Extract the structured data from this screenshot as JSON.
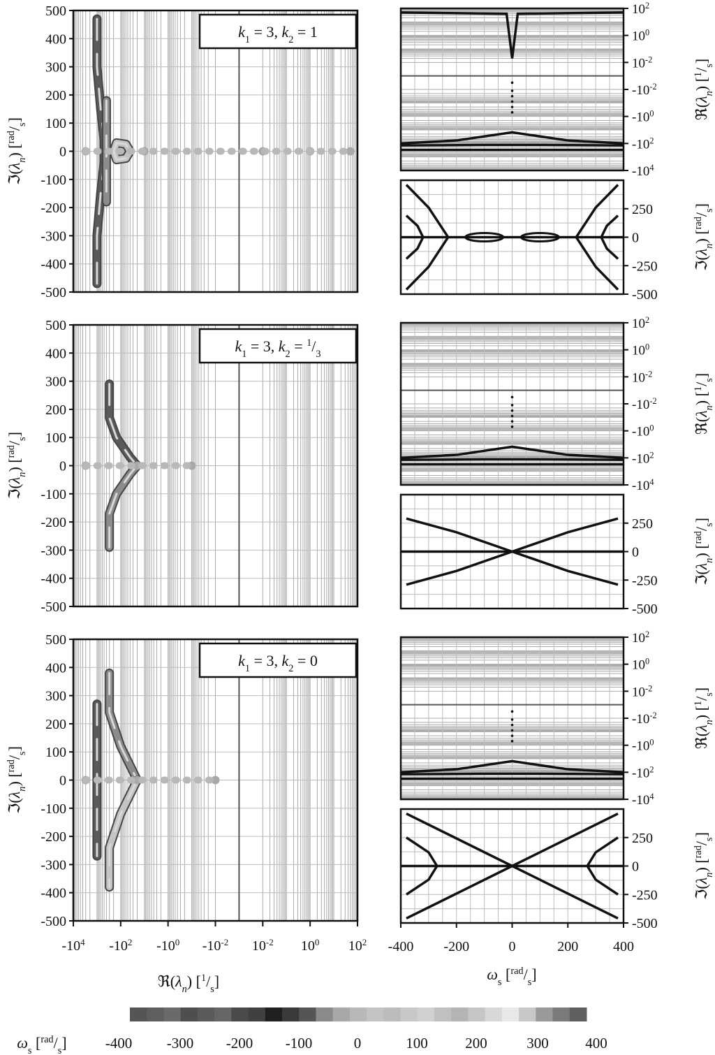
{
  "figure": {
    "left_ylabel": "ℑ(λ_n)  [rad/s]",
    "left_xlabel": "ℜ(λ_n)  [1/s]",
    "right_re_label": "ℜ(λ_n)  [1/s]",
    "right_im_label": "ℑ(λ_n)  [rad/s]",
    "right_xlabel": "ωs  [rad/s]",
    "colorbar_label": "ωs  [rad/s]"
  },
  "colorbar": {
    "ticks": [
      "-400",
      "-300",
      "-200",
      "-100",
      "0",
      "100",
      "200",
      "300",
      "400"
    ],
    "colors": [
      "#555555",
      "#5e5e5e",
      "#6a6a6a",
      "#4e4e4e",
      "#5a5a5a",
      "#666666",
      "#4a4a4a",
      "#404040",
      "#202020",
      "#3a3a3a",
      "#555555",
      "#8a8a8a",
      "#a8a8a8",
      "#b8b8b8",
      "#c4c4c4",
      "#bcbcbc",
      "#c8c8c8",
      "#d0d0d0",
      "#c0c0c0",
      "#b4b4b4",
      "#c6c6c6",
      "#d8d8d8",
      "#e8e8e8",
      "#c8c8c8",
      "#9a9a9a",
      "#7a7a7a",
      "#5e5e5e"
    ]
  },
  "chart_data": [
    {
      "type": "scatter",
      "panel": "root-locus",
      "legend": "k1 = 3, k2 = 1",
      "xlabel": "ℜ(λ_n)  [1/s]",
      "ylabel": "ℑ(λ_n)  [rad/s]",
      "x_scale": "symlog",
      "x_ticks": [
        "-10^4",
        "-10^2",
        "-10^0",
        "-10^-2",
        "10^-2",
        "10^0",
        "10^2"
      ],
      "ylim": [
        -500,
        500
      ],
      "y_ticks": [
        "500",
        "400",
        "300",
        "200",
        "100",
        "0",
        "-100",
        "-200",
        "-300",
        "-400",
        "-500"
      ],
      "grid": true,
      "branches": [
        {
          "name": "outer",
          "points": [
            [
              -1000,
              470
            ],
            [
              -1000,
              300
            ],
            [
              -700,
              150
            ],
            [
              -500,
              40
            ],
            [
              -500,
              -40
            ],
            [
              -700,
              -150
            ],
            [
              -1000,
              -300
            ],
            [
              -1000,
              -470
            ]
          ]
        },
        {
          "name": "inner",
          "points": [
            [
              -400,
              180
            ],
            [
              -400,
              60
            ],
            [
              -400,
              -60
            ],
            [
              -400,
              -180
            ]
          ]
        },
        {
          "name": "loop",
          "points": [
            [
              -200,
              0
            ],
            [
              -150,
              30
            ],
            [
              -60,
              25
            ],
            [
              -40,
              0
            ],
            [
              -60,
              -25
            ],
            [
              -150,
              -30
            ],
            [
              -200,
              0
            ]
          ]
        },
        {
          "name": "real-axis",
          "points": [
            [
              -3000,
              0
            ],
            [
              -10,
              0
            ],
            [
              0.01,
              0
            ],
            [
              1,
              0
            ],
            [
              50,
              0
            ]
          ]
        }
      ]
    },
    {
      "type": "line",
      "panel": "real-part-vs-omega",
      "xlim": [
        -400,
        400
      ],
      "y_scale": "symlog",
      "y_ticks": [
        "10^2",
        "10^0",
        "10^-2",
        "-10^-2",
        "-10^0",
        "-10^2",
        "-10^4"
      ],
      "ylabel": "ℜ(λ_n)  [1/s]",
      "grid": true
    },
    {
      "type": "line",
      "panel": "imag-part-vs-omega",
      "xlim": [
        -400,
        400
      ],
      "ylim": [
        -500,
        500
      ],
      "y_ticks": [
        "250",
        "0",
        "-250",
        "-500"
      ],
      "ylabel": "ℑ(λ_n)  [rad/s]",
      "grid": true
    },
    {
      "type": "scatter",
      "panel": "root-locus",
      "legend": "k1 = 3, k2 = 1/3",
      "xlabel": "ℜ(λ_n)  [1/s]",
      "ylabel": "ℑ(λ_n)  [rad/s]",
      "x_scale": "symlog",
      "ylim": [
        -500,
        500
      ],
      "y_ticks": [
        "500",
        "400",
        "300",
        "200",
        "100",
        "0",
        "-100",
        "-200",
        "-300",
        "-400",
        "-500"
      ],
      "grid": true,
      "branches": [
        {
          "name": "upper",
          "points": [
            [
              -300,
              290
            ],
            [
              -300,
              170
            ],
            [
              -150,
              100
            ],
            [
              -40,
              30
            ],
            [
              -20,
              0
            ]
          ]
        },
        {
          "name": "lower",
          "points": [
            [
              -20,
              0
            ],
            [
              -40,
              -30
            ],
            [
              -150,
              -100
            ],
            [
              -300,
              -170
            ],
            [
              -300,
              -290
            ]
          ]
        },
        {
          "name": "real-axis",
          "points": [
            [
              -3000,
              0
            ],
            [
              -20,
              0
            ],
            [
              -0.1,
              0
            ]
          ]
        }
      ]
    },
    {
      "type": "line",
      "panel": "real-part-vs-omega",
      "xlim": [
        -400,
        400
      ],
      "y_scale": "symlog",
      "y_ticks": [
        "10^2",
        "10^0",
        "10^-2",
        "-10^-2",
        "-10^0",
        "-10^2",
        "-10^4"
      ],
      "ylabel": "ℜ(λ_n)  [1/s]",
      "grid": true
    },
    {
      "type": "line",
      "panel": "imag-part-vs-omega",
      "xlim": [
        -400,
        400
      ],
      "ylim": [
        -500,
        500
      ],
      "y_ticks": [
        "250",
        "0",
        "-250",
        "-500"
      ],
      "ylabel": "ℑ(λ_n)  [rad/s]",
      "grid": true
    },
    {
      "type": "scatter",
      "panel": "root-locus",
      "legend": "k1 = 3, k2 = 0",
      "xlabel": "ℜ(λ_n)  [1/s]",
      "ylabel": "ℑ(λ_n)  [rad/s]",
      "x_scale": "symlog",
      "ylim": [
        -500,
        500
      ],
      "y_ticks": [
        "500",
        "400",
        "300",
        "200",
        "100",
        "0",
        "-100",
        "-200",
        "-300",
        "-400",
        "-500"
      ],
      "grid": true,
      "branches": [
        {
          "name": "vertical",
          "points": [
            [
              -1000,
              270
            ],
            [
              -1000,
              0
            ],
            [
              -1000,
              -270
            ]
          ]
        },
        {
          "name": "upper",
          "points": [
            [
              -300,
              380
            ],
            [
              -300,
              240
            ],
            [
              -100,
              120
            ],
            [
              -30,
              30
            ],
            [
              -20,
              0
            ]
          ]
        },
        {
          "name": "lower",
          "points": [
            [
              -20,
              0
            ],
            [
              -30,
              -30
            ],
            [
              -100,
              -120
            ],
            [
              -300,
              -240
            ],
            [
              -300,
              -380
            ]
          ]
        },
        {
          "name": "real-axis",
          "points": [
            [
              -3000,
              0
            ],
            [
              -20,
              0
            ],
            [
              -0.01,
              0
            ]
          ]
        }
      ]
    },
    {
      "type": "line",
      "panel": "real-part-vs-omega",
      "xlim": [
        -400,
        400
      ],
      "y_scale": "symlog",
      "y_ticks": [
        "10^2",
        "10^0",
        "10^-2",
        "-10^-2",
        "-10^0",
        "-10^2",
        "-10^4"
      ],
      "ylabel": "ℜ(λ_n)  [1/s]",
      "grid": true
    },
    {
      "type": "line",
      "panel": "imag-part-vs-omega",
      "xlim": [
        -400,
        400
      ],
      "ylim": [
        -500,
        500
      ],
      "y_ticks": [
        "250",
        "0",
        "-250",
        "-500"
      ],
      "x_ticks": [
        "-400",
        "-200",
        "0",
        "200",
        "400"
      ],
      "xlabel": "ωs  [rad/s]",
      "ylabel": "ℑ(λ_n)  [rad/s]",
      "grid": true
    }
  ]
}
